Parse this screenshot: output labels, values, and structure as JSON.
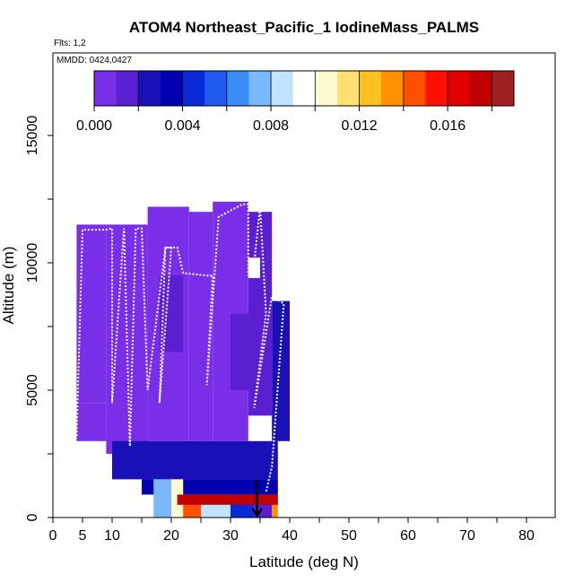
{
  "chart_data": {
    "type": "heatmap",
    "title": "ATOM4 Northeast_Pacific_1 IodineMass_PALMS",
    "flights_label": "Flts: 1,2",
    "dates_label": "MMDD: 0424,0427",
    "xlabel": "Latitude (deg N)",
    "ylabel": "Altitude (m)",
    "xlim": [
      0,
      85
    ],
    "ylim": [
      0,
      18000
    ],
    "x_ticks": [
      0,
      5,
      10,
      20,
      30,
      40,
      50,
      60,
      70,
      80
    ],
    "y_ticks": [
      0,
      5000,
      10000,
      15000
    ],
    "colorbar": {
      "range": [
        0,
        0.019
      ],
      "ticks": [
        0.0,
        0.004,
        0.008,
        0.012,
        0.016
      ],
      "tick_labels": [
        "0.000",
        "0.004",
        "0.008",
        "0.012",
        "0.016"
      ],
      "colors": [
        "#7a2ee8",
        "#5a1fd0",
        "#1a10b8",
        "#0000b0",
        "#0a2ad8",
        "#1e5af0",
        "#3a8cf8",
        "#7ab8ff",
        "#c0e4ff",
        "#ffffff",
        "#fffad0",
        "#ffe070",
        "#ffc020",
        "#ff9000",
        "#ff5000",
        "#ff1000",
        "#e00000",
        "#c00000",
        "#a02020"
      ]
    },
    "grid": false,
    "legend_position": "top",
    "cells": [
      {
        "lat": [
          4,
          9
        ],
        "alt": [
          3000,
          4500
        ],
        "value": 0.0006
      },
      {
        "lat": [
          4,
          9
        ],
        "alt": [
          4500,
          11500
        ],
        "value": 0.0003
      },
      {
        "lat": [
          9,
          16
        ],
        "alt": [
          2500,
          11500
        ],
        "value": 0.0004
      },
      {
        "lat": [
          16,
          23
        ],
        "alt": [
          3000,
          12200
        ],
        "value": 0.0005
      },
      {
        "lat": [
          18,
          22
        ],
        "alt": [
          6500,
          9500
        ],
        "value": 0.0012
      },
      {
        "lat": [
          23,
          27
        ],
        "alt": [
          3000,
          12000
        ],
        "value": 0.0009
      },
      {
        "lat": [
          27,
          33
        ],
        "alt": [
          3000,
          12400
        ],
        "value": 0.0008
      },
      {
        "lat": [
          30,
          35
        ],
        "alt": [
          5000,
          8000
        ],
        "value": 0.0018
      },
      {
        "lat": [
          33,
          37
        ],
        "alt": [
          4000,
          12000
        ],
        "value": 0.0016
      },
      {
        "lat": [
          37,
          40
        ],
        "alt": [
          3000,
          8500
        ],
        "value": 0.0022
      },
      {
        "lat": [
          33,
          35
        ],
        "alt": [
          9400,
          10200
        ],
        "value": 0.009
      },
      {
        "lat": [
          10,
          38
        ],
        "alt": [
          1500,
          3000
        ],
        "value": 0.0024
      },
      {
        "lat": [
          15,
          38
        ],
        "alt": [
          900,
          1500
        ],
        "value": 0.0035
      },
      {
        "lat": [
          17,
          20
        ],
        "alt": [
          0,
          1500
        ],
        "value": 0.0075
      },
      {
        "lat": [
          20,
          22
        ],
        "alt": [
          0,
          1500
        ],
        "value": 0.01
      },
      {
        "lat": [
          22,
          25
        ],
        "alt": [
          0,
          900
        ],
        "value": 0.014
      },
      {
        "lat": [
          25,
          30
        ],
        "alt": [
          0,
          900
        ],
        "value": 0.0085
      },
      {
        "lat": [
          30,
          34
        ],
        "alt": [
          0,
          900
        ],
        "value": 0.004
      },
      {
        "lat": [
          34,
          37
        ],
        "alt": [
          0,
          900
        ],
        "value": 0.0015
      },
      {
        "lat": [
          37,
          38
        ],
        "alt": [
          0,
          900
        ],
        "value": 0.013
      },
      {
        "lat": [
          21,
          38
        ],
        "alt": [
          500,
          900
        ],
        "value": 0.017
      }
    ],
    "flight_track": [
      [
        4,
        3200
      ],
      [
        5,
        11300
      ],
      [
        9,
        11300
      ],
      [
        10,
        11350
      ],
      [
        10,
        4500
      ],
      [
        12,
        11350
      ],
      [
        13,
        2800
      ],
      [
        14,
        11350
      ],
      [
        15,
        11350
      ],
      [
        16,
        5000
      ],
      [
        19,
        10600
      ],
      [
        20,
        10600
      ],
      [
        18,
        4500
      ],
      [
        19,
        10600
      ],
      [
        21,
        10600
      ],
      [
        22,
        9600
      ],
      [
        26,
        9500
      ],
      [
        27,
        9500
      ],
      [
        26,
        5200
      ],
      [
        28,
        11800
      ],
      [
        32,
        12300
      ],
      [
        33,
        12300
      ],
      [
        33,
        9500
      ],
      [
        34,
        10000
      ],
      [
        35,
        12200
      ],
      [
        36,
        8000
      ],
      [
        34,
        4300
      ],
      [
        37,
        8700
      ],
      [
        39,
        8400
      ],
      [
        38,
        5200
      ],
      [
        37,
        2000
      ],
      [
        36,
        1000
      ]
    ],
    "ship_marker": {
      "lat": 34.5,
      "alt": 700
    }
  }
}
